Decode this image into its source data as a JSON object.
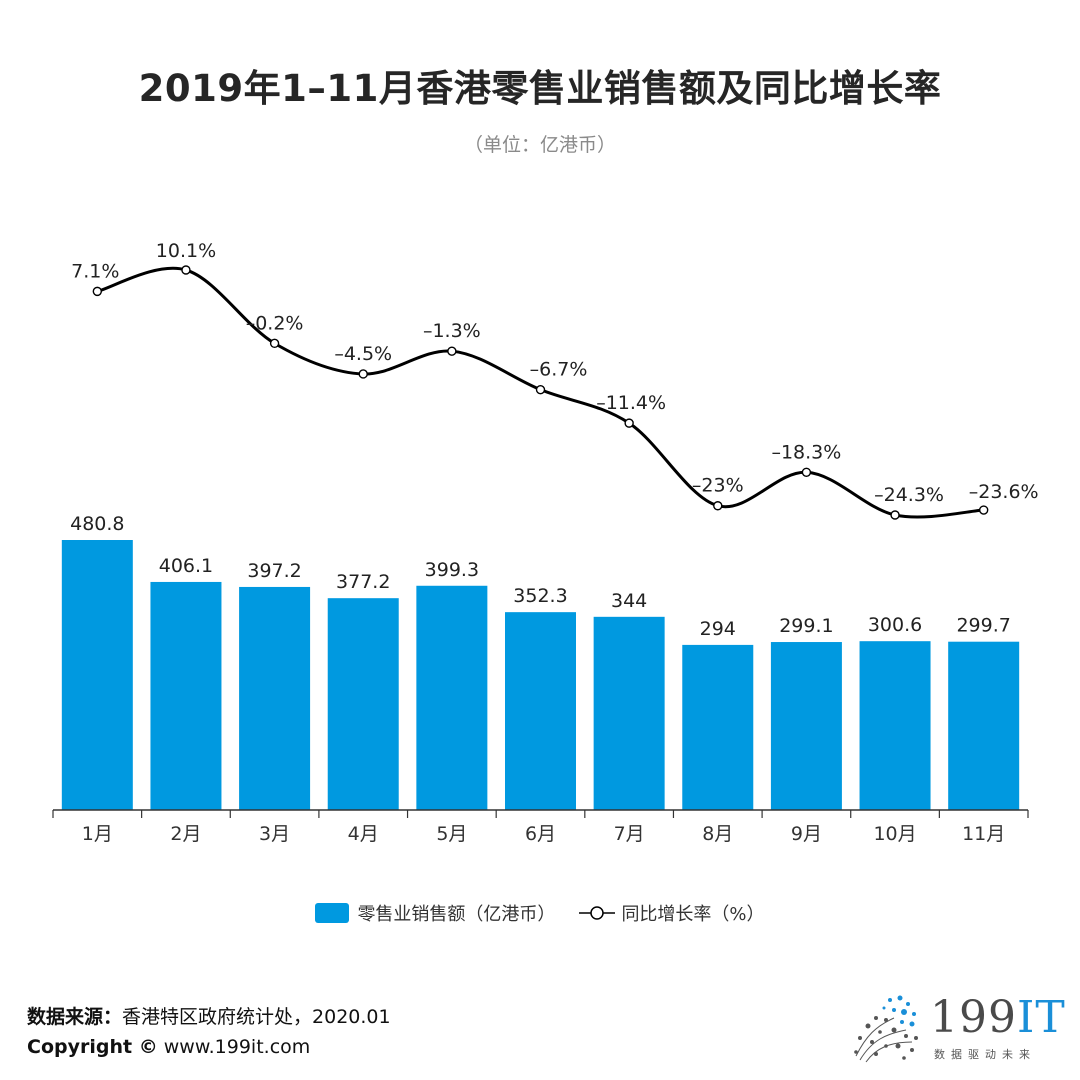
{
  "title": "2019年1–11月香港零售业销售额及同比增长率",
  "subtitle": "（单位：亿港币）",
  "colors": {
    "bar": "#0099e0",
    "line": "#000000",
    "axis": "#333333",
    "marker_fill": "#ffffff"
  },
  "legend": {
    "bar_label": "零售业销售额（亿港币）",
    "line_label": "同比增长率（%）"
  },
  "chart_data": {
    "type": "bar+line",
    "categories": [
      "1月",
      "2月",
      "3月",
      "4月",
      "5月",
      "6月",
      "7月",
      "8月",
      "9月",
      "10月",
      "11月"
    ],
    "series": [
      {
        "name": "零售业销售额（亿港币）",
        "kind": "bar",
        "values": [
          480.8,
          406.1,
          397.2,
          377.2,
          399.3,
          352.3,
          344,
          294,
          299.1,
          300.6,
          299.7
        ],
        "labels": [
          "480.8",
          "406.1",
          "397.2",
          "377.2",
          "399.3",
          "352.3",
          "344",
          "294",
          "299.1",
          "300.6",
          "299.7"
        ]
      },
      {
        "name": "同比增长率（%）",
        "kind": "line",
        "values": [
          7.1,
          10.1,
          -0.2,
          -4.5,
          -1.3,
          -6.7,
          -11.4,
          -23,
          -18.3,
          -24.3,
          -23.6
        ],
        "labels": [
          "7.1%",
          "10.1%",
          "–0.2%",
          "–4.5%",
          "–1.3%",
          "–6.7%",
          "–11.4%",
          "–23%",
          "–18.3%",
          "–24.3%",
          "–23.6%"
        ]
      }
    ],
    "bar_ylim": [
      0,
      480.8
    ],
    "line_ylim": [
      -24.3,
      10.1
    ],
    "legend_position": "bottom-center"
  },
  "footer": {
    "source_label": "数据来源：",
    "source_text": "香港特区政府统计处，2020.01",
    "copyright_label": "Copyright ©",
    "copyright_text": "  www.199it.com"
  },
  "logo": {
    "brand_num": "199",
    "brand_it": "IT",
    "tagline": "数据驱动未来"
  }
}
